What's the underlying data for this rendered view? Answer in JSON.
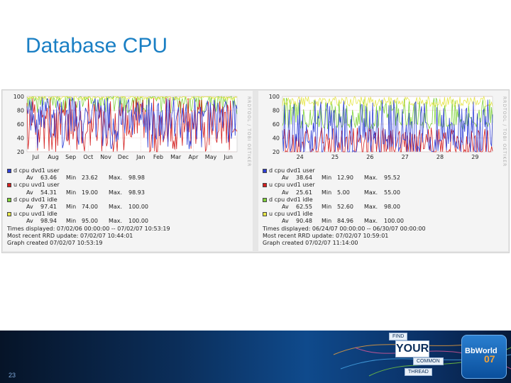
{
  "slide": {
    "title": "Database CPU",
    "page_number": "23"
  },
  "branding": {
    "tags": [
      "FIND",
      "YOUR",
      "COMMON",
      "THREAD"
    ],
    "logo_text": "BbWorld",
    "logo_year": "07"
  },
  "colors": {
    "d_cpu_user": "#2f3fd6",
    "u_cpu_user": "#d42020",
    "d_cpu_idle": "#7fd23a",
    "u_cpu_idle": "#e6e64a",
    "accent": "#1a7fc4"
  },
  "chart_data": [
    {
      "type": "line",
      "watermark": "RRDTOOL / TOBI OETIKER",
      "y_ticks": [
        "100",
        "80",
        "60",
        "40",
        "20"
      ],
      "ylim": [
        20,
        100
      ],
      "x_ticks": [
        "Jul",
        "Aug",
        "Sep",
        "Oct",
        "Nov",
        "Dec",
        "Jan",
        "Feb",
        "Mar",
        "Apr",
        "May",
        "Jun"
      ],
      "grid": true,
      "series": [
        {
          "name": "d cpu dvd1 user",
          "color_key": "d_cpu_user",
          "av": "63.46",
          "min": "23.62",
          "max": "98.98",
          "min_value": 23.62,
          "max_value": 98.98,
          "avg": 63.46
        },
        {
          "name": "u cpu uvd1 user",
          "color_key": "u_cpu_user",
          "av": "54.31",
          "min": "19.00",
          "max": "98.93",
          "min_value": 19.0,
          "max_value": 98.93,
          "avg": 54.31
        },
        {
          "name": "d cpu dvd1 idle",
          "color_key": "d_cpu_idle",
          "av": "97.41",
          "min": "74.00",
          "max": "100.00",
          "min_value": 74.0,
          "max_value": 100.0,
          "avg": 97.41
        },
        {
          "name": "u cpu uvd1 idle",
          "color_key": "u_cpu_idle",
          "av": "98.94",
          "min": "95.00",
          "max": "100.00",
          "min_value": 95.0,
          "max_value": 100.0,
          "avg": 98.94
        }
      ],
      "info": [
        "Times displayed: 07/02/06 00:00:00 -- 07/02/07 10:53:19",
        "Most recent RRD update: 07/02/07 10:44:01",
        "Graph created 07/02/07 10:53:19"
      ]
    },
    {
      "type": "line",
      "watermark": "RRDTOOL / TOBI OETIKER",
      "y_ticks": [
        "100",
        "80",
        "60",
        "40",
        "20"
      ],
      "ylim": [
        20,
        100
      ],
      "x_ticks": [
        "24",
        "25",
        "26",
        "27",
        "28",
        "29"
      ],
      "grid": true,
      "series": [
        {
          "name": "d cpu dvd1 user",
          "color_key": "d_cpu_user",
          "av": "38.64",
          "min": "12.90",
          "max": "95.52",
          "min_value": 12.9,
          "max_value": 95.52,
          "avg": 38.64
        },
        {
          "name": "u cpu uvd1 user",
          "color_key": "u_cpu_user",
          "av": "25.61",
          "min": "5.00",
          "max": "55.00",
          "min_value": 5.0,
          "max_value": 55.0,
          "avg": 25.61
        },
        {
          "name": "d cpu dvd1 idle",
          "color_key": "d_cpu_idle",
          "av": "62.55",
          "min": "52.60",
          "max": "98.00",
          "min_value": 52.6,
          "max_value": 98.0,
          "avg": 62.55
        },
        {
          "name": "u cpu uvd1 idle",
          "color_key": "u_cpu_idle",
          "av": "90.48",
          "min": "84.96",
          "max": "100.00",
          "min_value": 84.96,
          "max_value": 100.0,
          "avg": 90.48
        }
      ],
      "info": [
        "Times displayed: 06/24/07 00:00:00 -- 06/30/07 00:00:00",
        "Most recent RRD update: 07/02/07 10:59:01",
        "Graph created 07/02/07 11:14:00"
      ]
    }
  ],
  "labels": {
    "av": "Av",
    "min": "Min",
    "max": "Max."
  }
}
